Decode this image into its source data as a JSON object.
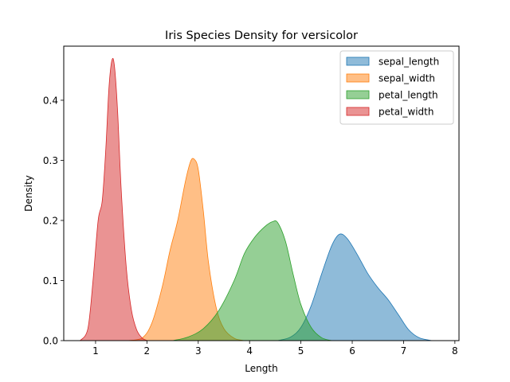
{
  "chart_data": {
    "type": "area",
    "title": "Iris Species Density for versicolor",
    "xlabel": "Length",
    "ylabel": "Density",
    "xlim": [
      0.38,
      8.08
    ],
    "ylim": [
      0.0,
      0.49
    ],
    "xticks": [
      1,
      2,
      3,
      4,
      5,
      6,
      7,
      8
    ],
    "xtick_labels": [
      "1",
      "2",
      "3",
      "4",
      "5",
      "6",
      "7",
      "8"
    ],
    "yticks": [
      0.0,
      0.1,
      0.2,
      0.3,
      0.4
    ],
    "ytick_labels": [
      "0.0",
      "0.1",
      "0.2",
      "0.3",
      "0.4"
    ],
    "grid": false,
    "legend_position": "top-right",
    "series": [
      {
        "name": "sepal_length",
        "color": "#1f77b4",
        "x": [
          4.55,
          4.8,
          5.0,
          5.2,
          5.4,
          5.6,
          5.75,
          5.9,
          6.1,
          6.3,
          6.5,
          6.7,
          6.9,
          7.1,
          7.3,
          7.55
        ],
        "y": [
          0.0,
          0.006,
          0.022,
          0.058,
          0.11,
          0.158,
          0.177,
          0.17,
          0.143,
          0.112,
          0.088,
          0.068,
          0.043,
          0.018,
          0.005,
          0.0
        ]
      },
      {
        "name": "sepal_width",
        "color": "#ff7f0e",
        "x": [
          1.6,
          1.9,
          2.1,
          2.3,
          2.45,
          2.6,
          2.75,
          2.85,
          2.92,
          3.0,
          3.1,
          3.2,
          3.35,
          3.5,
          3.7,
          3.9
        ],
        "y": [
          0.0,
          0.004,
          0.03,
          0.09,
          0.15,
          0.2,
          0.265,
          0.298,
          0.302,
          0.285,
          0.215,
          0.13,
          0.055,
          0.02,
          0.004,
          0.0
        ]
      },
      {
        "name": "petal_length",
        "color": "#2ca02c",
        "x": [
          2.5,
          2.8,
          3.1,
          3.4,
          3.7,
          3.9,
          4.1,
          4.3,
          4.45,
          4.55,
          4.7,
          4.85,
          5.0,
          5.2,
          5.4,
          5.6
        ],
        "y": [
          0.0,
          0.006,
          0.02,
          0.05,
          0.1,
          0.145,
          0.172,
          0.19,
          0.198,
          0.196,
          0.165,
          0.11,
          0.06,
          0.022,
          0.005,
          0.0
        ]
      },
      {
        "name": "petal_width",
        "color": "#d62728",
        "x": [
          0.7,
          0.85,
          0.95,
          1.05,
          1.13,
          1.2,
          1.26,
          1.32,
          1.37,
          1.43,
          1.5,
          1.6,
          1.7,
          1.8,
          1.9,
          2.0
        ],
        "y": [
          0.0,
          0.02,
          0.1,
          0.2,
          0.233,
          0.32,
          0.42,
          0.467,
          0.455,
          0.38,
          0.25,
          0.12,
          0.05,
          0.018,
          0.005,
          0.0
        ]
      }
    ]
  }
}
